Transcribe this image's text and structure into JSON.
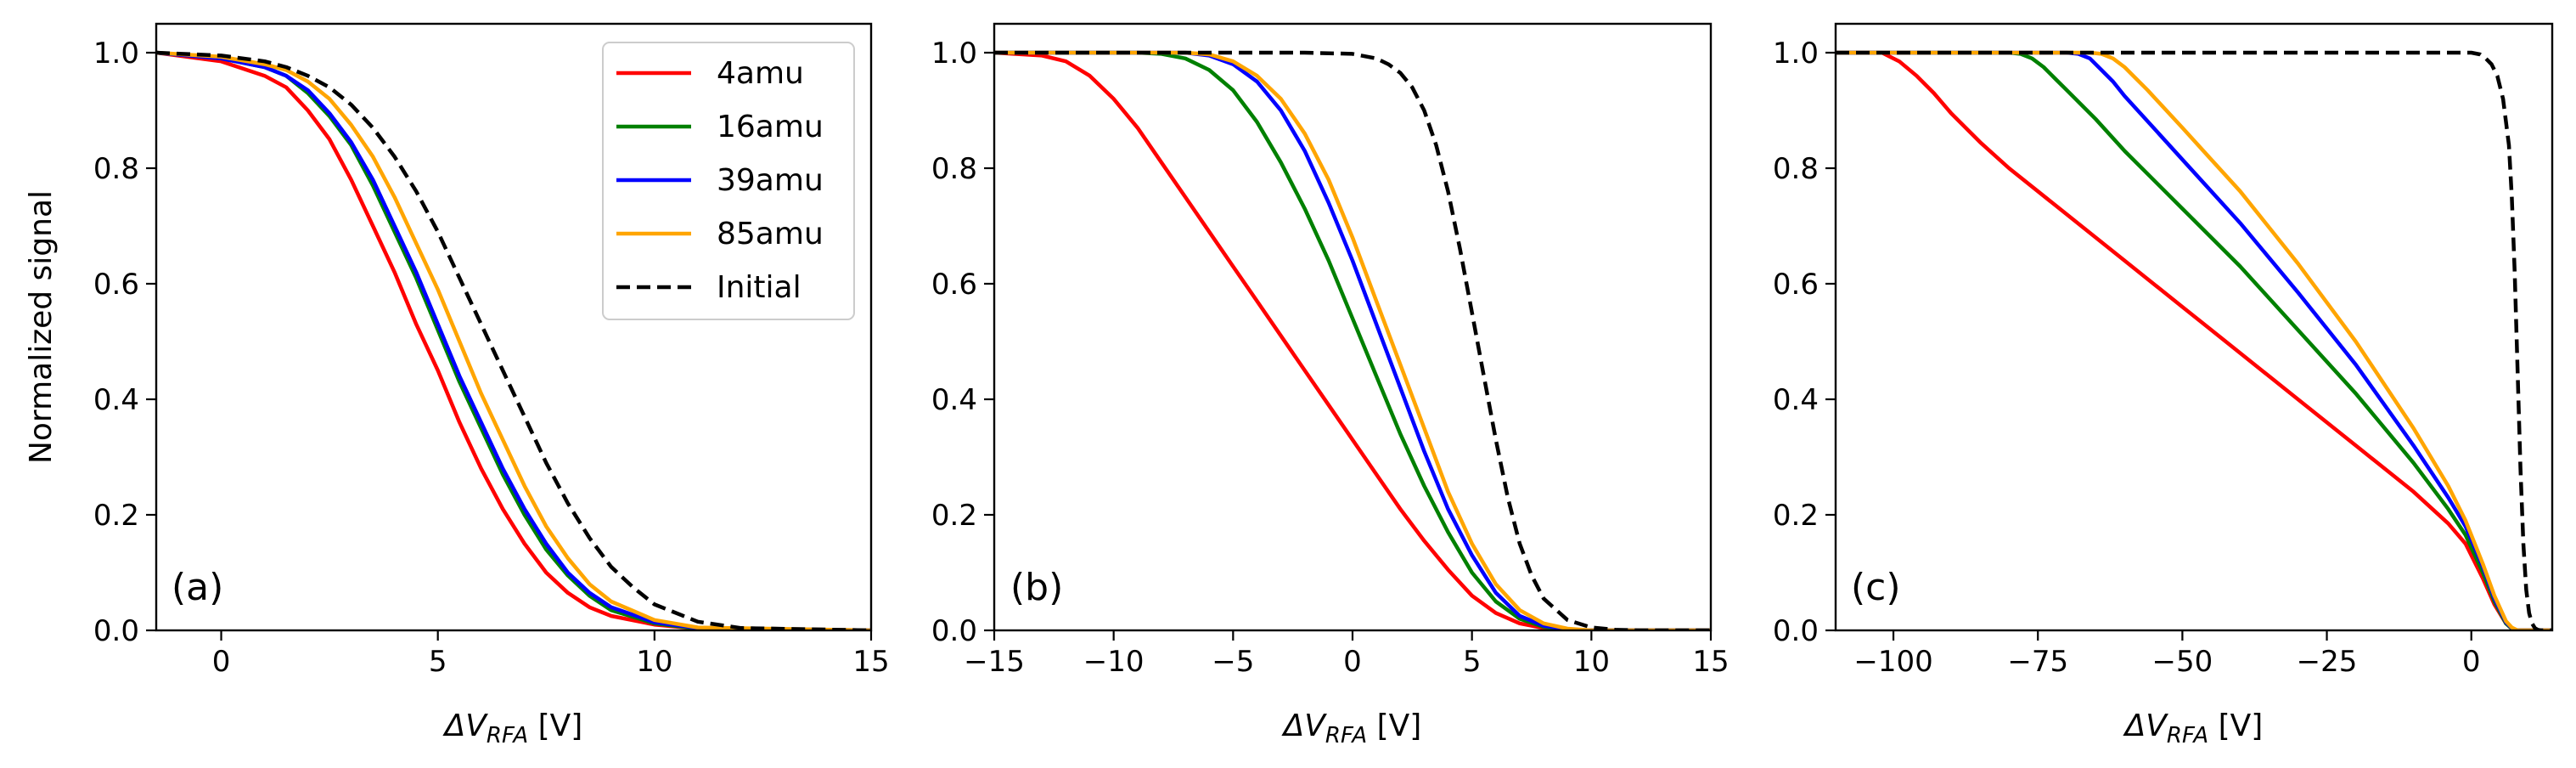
{
  "chart_data": [
    {
      "type": "line",
      "panel_label": "(a)",
      "xlabel": "ΔV",
      "xlabel_sub": "RFA",
      "xlabel_unit": " [V]",
      "ylabel": "Normalized signal",
      "xlim": [
        -1.5,
        15
      ],
      "ylim": [
        0,
        1.05
      ],
      "xticks": [
        0,
        5,
        10,
        15
      ],
      "xtick_labels": [
        "0",
        "5",
        "10",
        "15"
      ],
      "yticks": [
        0,
        0.2,
        0.4,
        0.6,
        0.8,
        1.0
      ],
      "ytick_labels": [
        "0.0",
        "0.2",
        "0.4",
        "0.6",
        "0.8",
        "1.0"
      ],
      "legend_position": "top-right",
      "series": [
        {
          "name": "4amu",
          "color": "#ff0000",
          "dashed": false,
          "x": [
            -1.5,
            0,
            1,
            1.5,
            2,
            2.5,
            3,
            3.5,
            4,
            4.5,
            5,
            5.5,
            6,
            6.5,
            7,
            7.5,
            8,
            8.5,
            9,
            10,
            11,
            12,
            15
          ],
          "y": [
            1.0,
            0.985,
            0.96,
            0.94,
            0.9,
            0.85,
            0.78,
            0.7,
            0.62,
            0.53,
            0.45,
            0.36,
            0.28,
            0.21,
            0.15,
            0.1,
            0.065,
            0.04,
            0.025,
            0.01,
            0.003,
            0.0,
            0.0
          ]
        },
        {
          "name": "16amu",
          "color": "#008000",
          "dashed": false,
          "x": [
            -1.5,
            0,
            1,
            1.5,
            2,
            2.5,
            3,
            3.5,
            4,
            4.5,
            5,
            5.5,
            6,
            6.5,
            7,
            7.5,
            8,
            8.5,
            9,
            10,
            11,
            15
          ],
          "y": [
            1.0,
            0.99,
            0.975,
            0.96,
            0.93,
            0.89,
            0.84,
            0.77,
            0.69,
            0.61,
            0.52,
            0.43,
            0.35,
            0.27,
            0.2,
            0.14,
            0.095,
            0.06,
            0.035,
            0.012,
            0.003,
            0.0
          ]
        },
        {
          "name": "39amu",
          "color": "#0000ff",
          "dashed": false,
          "x": [
            -1.5,
            0,
            1,
            1.5,
            2,
            2.5,
            3,
            3.5,
            4,
            4.5,
            5,
            5.5,
            6,
            6.5,
            7,
            7.5,
            8,
            8.5,
            9,
            10,
            11,
            15
          ],
          "y": [
            1.0,
            0.99,
            0.975,
            0.96,
            0.935,
            0.895,
            0.845,
            0.78,
            0.7,
            0.62,
            0.53,
            0.44,
            0.36,
            0.28,
            0.21,
            0.15,
            0.1,
            0.065,
            0.04,
            0.014,
            0.004,
            0.0
          ]
        },
        {
          "name": "85amu",
          "color": "#ffa500",
          "dashed": false,
          "x": [
            -1.5,
            0,
            1,
            1.5,
            2,
            2.5,
            3,
            3.5,
            4,
            4.5,
            5,
            5.5,
            6,
            6.5,
            7,
            7.5,
            8,
            8.5,
            9,
            10,
            11,
            15
          ],
          "y": [
            1.0,
            0.993,
            0.98,
            0.97,
            0.95,
            0.92,
            0.875,
            0.82,
            0.75,
            0.67,
            0.59,
            0.5,
            0.41,
            0.33,
            0.25,
            0.18,
            0.125,
            0.08,
            0.05,
            0.018,
            0.005,
            0.0
          ]
        },
        {
          "name": "Initial",
          "color": "#000000",
          "dashed": true,
          "x": [
            -1.5,
            0,
            1,
            1.5,
            2,
            2.5,
            3,
            3.5,
            4,
            4.5,
            5,
            5.5,
            6,
            6.5,
            7,
            7.5,
            8,
            8.5,
            9,
            9.5,
            10,
            11,
            12,
            15
          ],
          "y": [
            1.0,
            0.995,
            0.985,
            0.975,
            0.96,
            0.94,
            0.91,
            0.87,
            0.82,
            0.76,
            0.69,
            0.61,
            0.53,
            0.45,
            0.37,
            0.29,
            0.22,
            0.16,
            0.11,
            0.075,
            0.045,
            0.015,
            0.004,
            0.0
          ]
        }
      ]
    },
    {
      "type": "line",
      "panel_label": "(b)",
      "xlabel": "ΔV",
      "xlabel_sub": "RFA",
      "xlabel_unit": " [V]",
      "ylabel": "",
      "xlim": [
        -15,
        15
      ],
      "ylim": [
        0,
        1.05
      ],
      "xticks": [
        -15,
        -10,
        -5,
        0,
        5,
        10,
        15
      ],
      "xtick_labels": [
        "−15",
        "−10",
        "−5",
        "0",
        "5",
        "10",
        "15"
      ],
      "yticks": [
        0,
        0.2,
        0.4,
        0.6,
        0.8,
        1.0
      ],
      "ytick_labels": [
        "0.0",
        "0.2",
        "0.4",
        "0.6",
        "0.8",
        "1.0"
      ],
      "series": [
        {
          "name": "4amu",
          "color": "#ff0000",
          "dashed": false,
          "x": [
            -15,
            -13,
            -12,
            -11,
            -10,
            -9,
            -8,
            -7,
            -6,
            -5,
            -4,
            -3,
            -2,
            -1,
            0,
            1,
            2,
            3,
            4,
            5,
            6,
            7,
            8,
            9,
            10,
            15
          ],
          "y": [
            1.0,
            0.995,
            0.985,
            0.96,
            0.92,
            0.87,
            0.81,
            0.75,
            0.69,
            0.63,
            0.57,
            0.51,
            0.45,
            0.39,
            0.33,
            0.27,
            0.21,
            0.155,
            0.105,
            0.06,
            0.03,
            0.012,
            0.004,
            0.001,
            0.0,
            0.0
          ]
        },
        {
          "name": "16amu",
          "color": "#008000",
          "dashed": false,
          "x": [
            -15,
            -9,
            -8,
            -7,
            -6,
            -5,
            -4,
            -3,
            -2,
            -1,
            0,
            1,
            2,
            3,
            4,
            5,
            6,
            7,
            8,
            9,
            10,
            15
          ],
          "y": [
            1.0,
            1.0,
            0.998,
            0.99,
            0.97,
            0.935,
            0.88,
            0.81,
            0.73,
            0.64,
            0.54,
            0.44,
            0.34,
            0.25,
            0.17,
            0.1,
            0.05,
            0.02,
            0.006,
            0.001,
            0.0,
            0.0
          ]
        },
        {
          "name": "39amu",
          "color": "#0000ff",
          "dashed": false,
          "x": [
            -15,
            -7,
            -6,
            -5,
            -4,
            -3,
            -2,
            -1,
            0,
            1,
            2,
            3,
            4,
            5,
            6,
            7,
            8,
            9,
            10,
            15
          ],
          "y": [
            1.0,
            1.0,
            0.995,
            0.98,
            0.95,
            0.9,
            0.83,
            0.74,
            0.64,
            0.53,
            0.42,
            0.31,
            0.21,
            0.13,
            0.065,
            0.025,
            0.008,
            0.002,
            0.0,
            0.0
          ]
        },
        {
          "name": "85amu",
          "color": "#ffa500",
          "dashed": false,
          "x": [
            -15,
            -7,
            -6,
            -5,
            -4,
            -3,
            -2,
            -1,
            0,
            1,
            2,
            3,
            4,
            5,
            6,
            7,
            8,
            9,
            10,
            15
          ],
          "y": [
            1.0,
            1.0,
            0.997,
            0.985,
            0.96,
            0.92,
            0.86,
            0.78,
            0.68,
            0.57,
            0.46,
            0.35,
            0.24,
            0.15,
            0.08,
            0.035,
            0.012,
            0.003,
            0.0,
            0.0
          ]
        },
        {
          "name": "Initial",
          "color": "#000000",
          "dashed": true,
          "x": [
            -15,
            -2,
            0,
            1,
            1.5,
            2,
            2.5,
            3,
            3.5,
            4,
            4.5,
            5,
            5.5,
            6,
            6.5,
            7,
            7.5,
            8,
            9,
            10,
            11,
            12,
            15
          ],
          "y": [
            1.0,
            1.0,
            0.998,
            0.99,
            0.98,
            0.965,
            0.94,
            0.9,
            0.84,
            0.76,
            0.66,
            0.55,
            0.44,
            0.33,
            0.23,
            0.15,
            0.095,
            0.055,
            0.018,
            0.005,
            0.001,
            0.0,
            0.0
          ]
        }
      ]
    },
    {
      "type": "line",
      "panel_label": "(c)",
      "xlabel": "ΔV",
      "xlabel_sub": "RFA",
      "xlabel_unit": " [V]",
      "ylabel": "",
      "xlim": [
        -110,
        14
      ],
      "ylim": [
        0,
        1.05
      ],
      "xticks": [
        -100,
        -75,
        -50,
        -25,
        0
      ],
      "xtick_labels": [
        "−100",
        "−75",
        "−50",
        "−25",
        "0"
      ],
      "yticks": [
        0,
        0.2,
        0.4,
        0.6,
        0.8,
        1.0
      ],
      "ytick_labels": [
        "0.0",
        "0.2",
        "0.4",
        "0.6",
        "0.8",
        "1.0"
      ],
      "series": [
        {
          "name": "4amu",
          "color": "#ff0000",
          "dashed": false,
          "x": [
            -110,
            -102,
            -99,
            -96,
            -93,
            -90,
            -85,
            -80,
            -70,
            -60,
            -50,
            -40,
            -30,
            -20,
            -10,
            -4,
            -1,
            2,
            4,
            6,
            7,
            8,
            10,
            14
          ],
          "y": [
            1.0,
            1.0,
            0.985,
            0.96,
            0.93,
            0.895,
            0.845,
            0.8,
            0.72,
            0.64,
            0.56,
            0.48,
            0.4,
            0.32,
            0.24,
            0.185,
            0.15,
            0.09,
            0.045,
            0.012,
            0.003,
            0.0,
            0.0,
            0.0
          ]
        },
        {
          "name": "16amu",
          "color": "#008000",
          "dashed": false,
          "x": [
            -110,
            -80,
            -78,
            -76,
            -74,
            -72,
            -70,
            -65,
            -60,
            -50,
            -40,
            -30,
            -20,
            -10,
            -4,
            -1,
            2,
            4,
            6,
            7,
            8,
            9,
            14
          ],
          "y": [
            1.0,
            1.0,
            0.998,
            0.99,
            0.975,
            0.955,
            0.935,
            0.885,
            0.83,
            0.73,
            0.63,
            0.52,
            0.41,
            0.29,
            0.21,
            0.165,
            0.1,
            0.05,
            0.012,
            0.003,
            0.0,
            0.0,
            0.0
          ]
        },
        {
          "name": "39amu",
          "color": "#0000ff",
          "dashed": false,
          "x": [
            -110,
            -70,
            -68,
            -66,
            -64,
            -62,
            -60,
            -55,
            -50,
            -40,
            -30,
            -20,
            -10,
            -4,
            -1,
            2,
            4,
            6,
            7,
            8,
            9,
            14
          ],
          "y": [
            1.0,
            1.0,
            0.998,
            0.99,
            0.97,
            0.95,
            0.925,
            0.87,
            0.815,
            0.705,
            0.585,
            0.46,
            0.32,
            0.23,
            0.18,
            0.11,
            0.055,
            0.014,
            0.004,
            0.0,
            0.0,
            0.0
          ]
        },
        {
          "name": "85amu",
          "color": "#ffa500",
          "dashed": false,
          "x": [
            -110,
            -66,
            -64,
            -62,
            -60,
            -58,
            -56,
            -50,
            -45,
            -40,
            -30,
            -20,
            -10,
            -4,
            -1,
            2,
            4,
            6,
            7,
            8,
            9,
            14
          ],
          "y": [
            1.0,
            1.0,
            0.998,
            0.99,
            0.975,
            0.955,
            0.935,
            0.87,
            0.815,
            0.76,
            0.635,
            0.5,
            0.35,
            0.25,
            0.19,
            0.115,
            0.06,
            0.016,
            0.005,
            0.0,
            0.0,
            0.0
          ]
        },
        {
          "name": "Initial",
          "color": "#000000",
          "dashed": true,
          "x": [
            -110,
            0,
            1.5,
            2.5,
            3.5,
            4.5,
            5.5,
            6.5,
            7,
            7.5,
            8,
            8.5,
            9,
            9.5,
            10,
            10.5,
            11,
            11.5,
            12,
            14
          ],
          "y": [
            1.0,
            1.0,
            0.997,
            0.99,
            0.98,
            0.96,
            0.92,
            0.84,
            0.75,
            0.62,
            0.45,
            0.28,
            0.15,
            0.07,
            0.03,
            0.012,
            0.004,
            0.001,
            0.0,
            0.0
          ]
        }
      ]
    }
  ]
}
